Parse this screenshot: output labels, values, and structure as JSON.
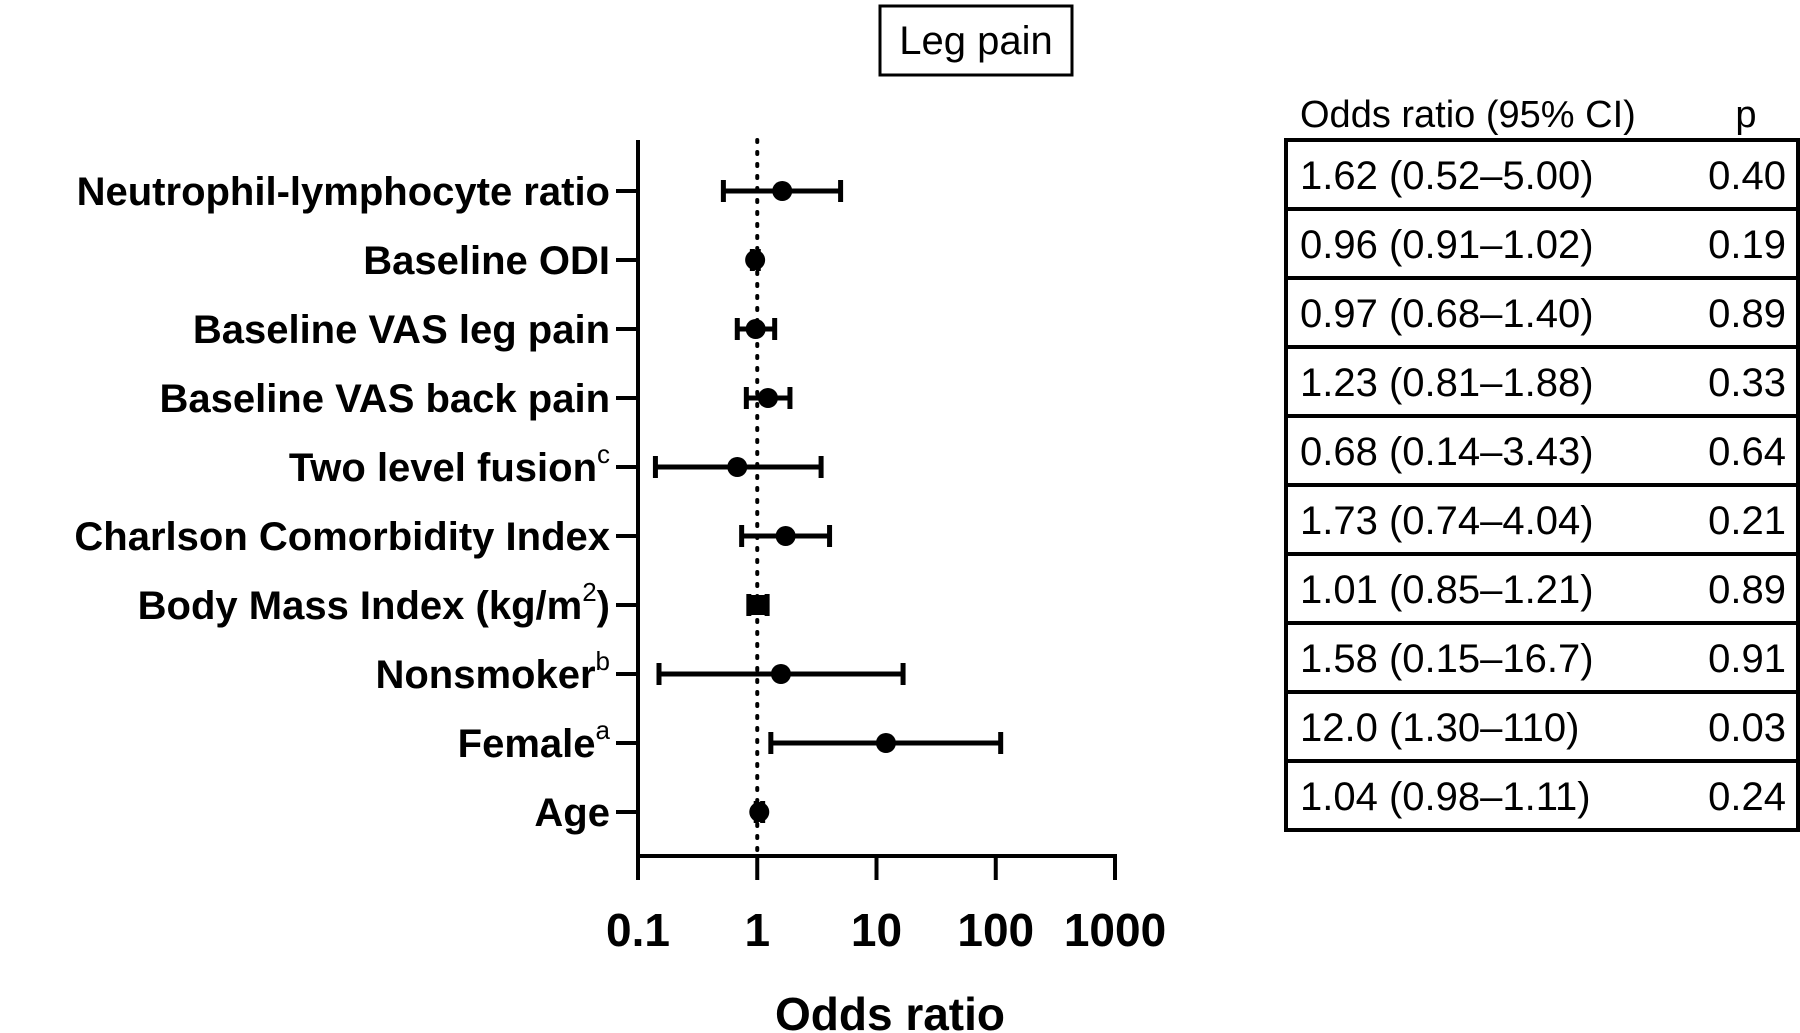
{
  "chart_data": {
    "type": "forest",
    "title": "Leg pain",
    "xlabel": "Odds ratio",
    "x_scale": "log",
    "xlim": [
      0.1,
      1000
    ],
    "x_ticks": [
      "0.1",
      "1",
      "10",
      "100",
      "1000"
    ],
    "x_tick_values": [
      0.1,
      1,
      10,
      100,
      1000
    ],
    "reference_line": 1,
    "table_header": {
      "or_ci": "Odds ratio (95% CI)",
      "p": "p"
    },
    "rows": [
      {
        "label": "Neutrophil-lymphocyte ratio",
        "sup": "",
        "or": 1.62,
        "lo": 0.52,
        "hi": 5.0,
        "or_ci": "1.62 (0.52–5.00)",
        "p": "0.40",
        "marker": "circle"
      },
      {
        "label": "Baseline ODI",
        "sup": "",
        "or": 0.96,
        "lo": 0.91,
        "hi": 1.02,
        "or_ci": "0.96 (0.91–1.02)",
        "p": "0.19",
        "marker": "circle"
      },
      {
        "label": "Baseline VAS leg pain",
        "sup": "",
        "or": 0.97,
        "lo": 0.68,
        "hi": 1.4,
        "or_ci": "0.97 (0.68–1.40)",
        "p": "0.89",
        "marker": "circle"
      },
      {
        "label": "Baseline VAS back pain",
        "sup": "",
        "or": 1.23,
        "lo": 0.81,
        "hi": 1.88,
        "or_ci": "1.23 (0.81–1.88)",
        "p": "0.33",
        "marker": "circle"
      },
      {
        "label": "Two level fusion",
        "sup": "c",
        "or": 0.68,
        "lo": 0.14,
        "hi": 3.43,
        "or_ci": "0.68 (0.14–3.43)",
        "p": "0.64",
        "marker": "circle"
      },
      {
        "label": "Charlson Comorbidity Index",
        "sup": "",
        "or": 1.73,
        "lo": 0.74,
        "hi": 4.04,
        "or_ci": "1.73 (0.74–4.04)",
        "p": "0.21",
        "marker": "circle"
      },
      {
        "label": "Body Mass Index (kg/m",
        "sup": "2",
        "suffix": ")",
        "or": 1.01,
        "lo": 0.85,
        "hi": 1.21,
        "or_ci": "1.01 (0.85–1.21)",
        "p": "0.89",
        "marker": "square"
      },
      {
        "label": "Nonsmoker",
        "sup": "b",
        "or": 1.58,
        "lo": 0.15,
        "hi": 16.7,
        "or_ci": "1.58 (0.15–16.7)",
        "p": "0.91",
        "marker": "circle"
      },
      {
        "label": "Female",
        "sup": "a",
        "or": 12.0,
        "lo": 1.3,
        "hi": 110,
        "or_ci": "12.0 (1.30–110)",
        "p": "0.03",
        "marker": "circle"
      },
      {
        "label": "Age",
        "sup": "",
        "or": 1.04,
        "lo": 0.98,
        "hi": 1.11,
        "or_ci": "1.04 (0.98–1.11)",
        "p": "0.24",
        "marker": "circle"
      }
    ]
  }
}
